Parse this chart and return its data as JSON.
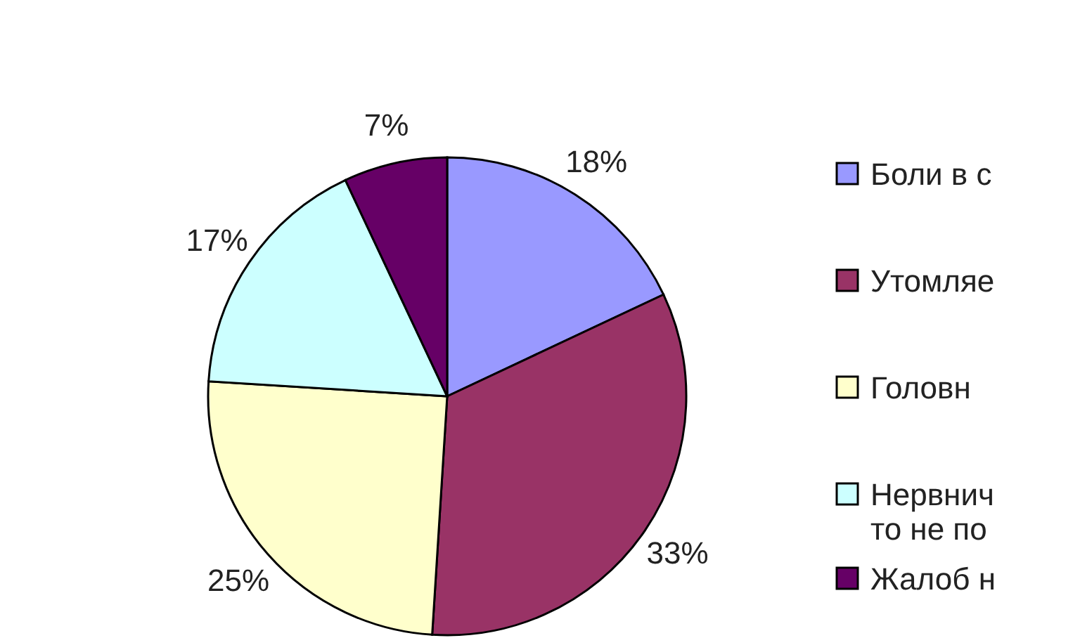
{
  "chart_data": {
    "type": "pie",
    "categories": [
      "Боли в с",
      "Утомляе",
      "Головн",
      "Нервнич то не по",
      "Жалоб н"
    ],
    "values": [
      18,
      33,
      25,
      17,
      7
    ],
    "colors": [
      "#9999ff",
      "#993366",
      "#ffffcc",
      "#ccffff",
      "#660066"
    ],
    "value_labels": [
      "18%",
      "33%",
      "25%",
      "17%",
      "7%"
    ],
    "legend": "right"
  }
}
